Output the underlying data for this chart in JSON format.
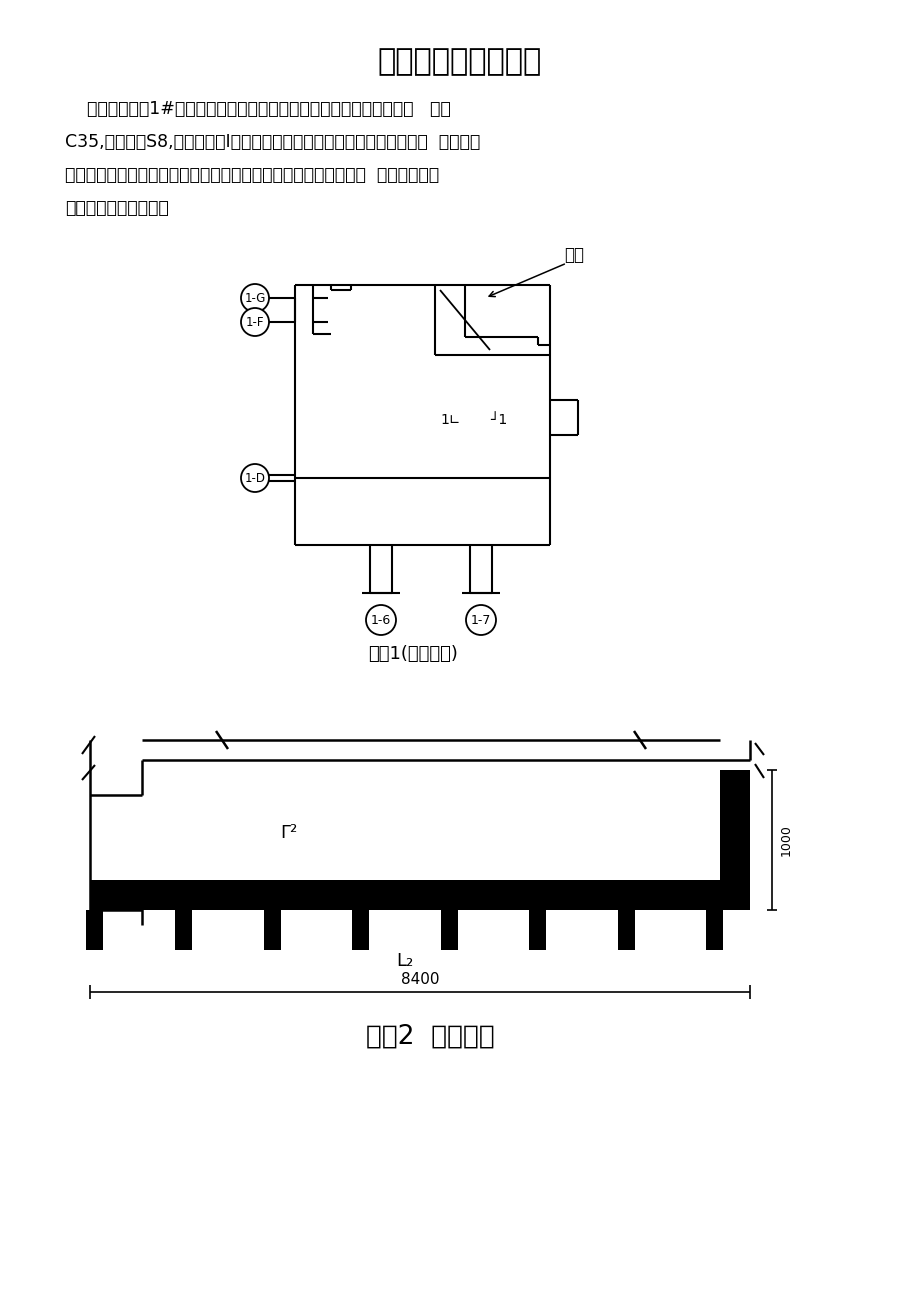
{
  "title": "地下室试水施工方案",
  "para_line1": "    七星四季花园1#楼工程，地下二层设计采用防水密实性混凝土，强度   等级",
  "para_line2": "C35,抗渗等级S8,防水等级为I级。我项目部按照设计及《地下工程防水技  术规范》",
  "para_line3": "施工。现地下室工程主体已施工完毕，我项目部拟采用局部试水方  案进行试水检",
  "para_line4": "测，试水部位见下图：",
  "label1": "部位1(三号口部)",
  "label2": "部位2  （外墙）",
  "fengkou_label": "风口",
  "dim_8400": "8400",
  "dim_1000": "1000",
  "bg_color": "#ffffff",
  "line_color": "#000000"
}
